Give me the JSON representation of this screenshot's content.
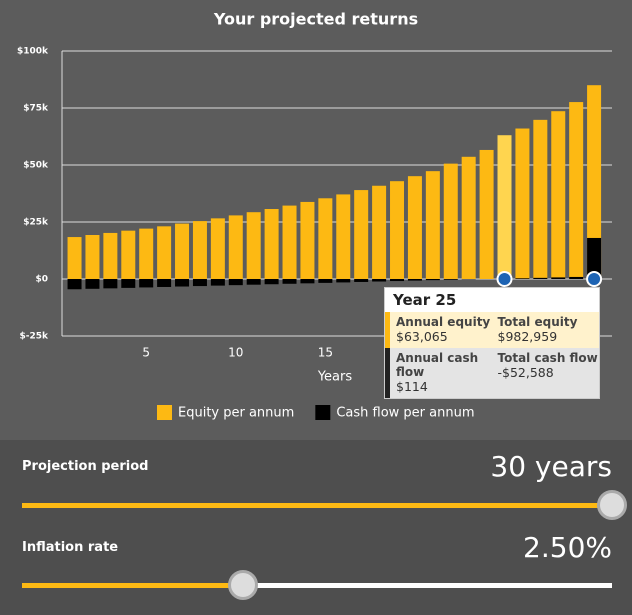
{
  "chart_data": {
    "type": "bar",
    "title": "Your projected returns",
    "x_label": "Years",
    "x": [
      1,
      2,
      3,
      4,
      5,
      6,
      7,
      8,
      9,
      10,
      11,
      12,
      13,
      14,
      15,
      16,
      17,
      18,
      19,
      20,
      21,
      22,
      23,
      24,
      25,
      26,
      27,
      28,
      29,
      30
    ],
    "series": [
      {
        "name": "Equity per annum",
        "color": "#fdb913",
        "values": [
          18400,
          19300,
          20200,
          21200,
          22100,
          23100,
          24300,
          25400,
          26600,
          27900,
          29300,
          30700,
          32200,
          33800,
          35400,
          37100,
          39000,
          40900,
          42900,
          45100,
          47300,
          50600,
          53600,
          56600,
          63065,
          66000,
          69800,
          73600,
          77600,
          85000
        ]
      },
      {
        "name": "Cash flow per annum",
        "color": "#000000",
        "values": [
          -4500,
          -4300,
          -4100,
          -3900,
          -3700,
          -3500,
          -3300,
          -3100,
          -2900,
          -2700,
          -2500,
          -2300,
          -2100,
          -1900,
          -1700,
          -1500,
          -1300,
          -1100,
          -900,
          -700,
          -500,
          -300,
          -100,
          0,
          114,
          300,
          500,
          700,
          900,
          18000
        ]
      }
    ],
    "highlight_x": 25,
    "highlight_color": "#ffd54f",
    "markers_x": [
      25,
      30
    ],
    "marker_color": "#1e64b4",
    "xlim": [
      0.3,
      31
    ],
    "xticks": [
      5,
      10,
      15
    ],
    "ylim": [
      -25000,
      100000
    ],
    "yticks": [
      {
        "value": -25000,
        "label": "$-25k"
      },
      {
        "value": 0,
        "label": "$0"
      },
      {
        "value": 25000,
        "label": "$25k"
      },
      {
        "value": 50000,
        "label": "$50k"
      },
      {
        "value": 75000,
        "label": "$75k"
      },
      {
        "value": 100000,
        "label": "$100k"
      }
    ],
    "grid": true
  },
  "tooltip": {
    "title": "Year 25",
    "rows": [
      [
        {
          "label": "Annual equity",
          "value": "$63,065"
        },
        {
          "label": "Total equity",
          "value": "$982,959"
        }
      ],
      [
        {
          "label": "Annual cash flow",
          "value": "$114"
        },
        {
          "label": "Total cash flow",
          "value": "-$52,588"
        }
      ]
    ]
  },
  "controls": [
    {
      "label": "Projection period",
      "value": "30 years"
    },
    {
      "label": "Inflation rate",
      "value": "2.50%"
    }
  ]
}
